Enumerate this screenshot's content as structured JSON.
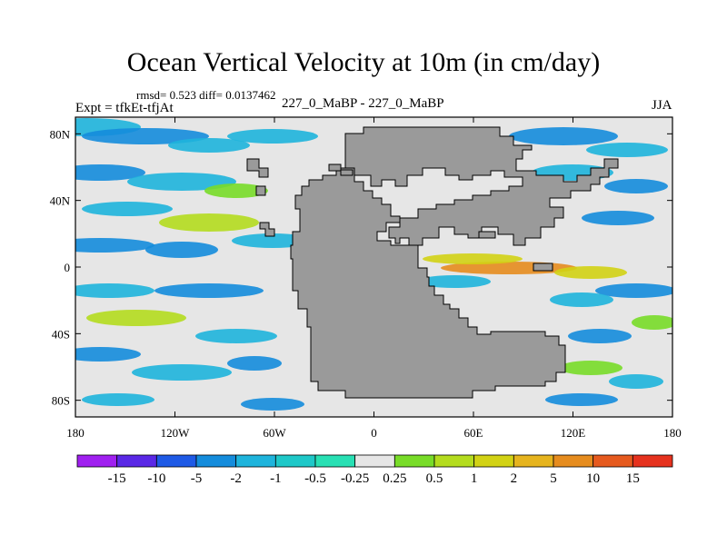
{
  "chart_data": {
    "type": "heatmap",
    "title": "Ocean Vertical Velocity at 10m (in cm/day)",
    "stats_label": "rmsd= 0.523  diff= 0.0137462",
    "left_label": "Expt = tfkEt-tfjAt",
    "center_label": "227_0_MaBP - 227_0_MaBP",
    "right_label": "JJA",
    "x_ticks": [
      {
        "value": -180,
        "label": "180"
      },
      {
        "value": -120,
        "label": "120W"
      },
      {
        "value": -60,
        "label": "60W"
      },
      {
        "value": 0,
        "label": "0"
      },
      {
        "value": 60,
        "label": "60E"
      },
      {
        "value": 120,
        "label": "120E"
      },
      {
        "value": 180,
        "label": "180"
      }
    ],
    "y_ticks": [
      {
        "value": 80,
        "label": "80N"
      },
      {
        "value": 40,
        "label": "40N"
      },
      {
        "value": 0,
        "label": "0"
      },
      {
        "value": -40,
        "label": "40S"
      },
      {
        "value": -80,
        "label": "80S"
      }
    ],
    "xlim": [
      -180,
      180
    ],
    "ylim": [
      -90,
      90
    ],
    "colorbar": {
      "levels": [
        "-15",
        "-10",
        "-5",
        "-2",
        "-1",
        "-0.5",
        "-0.25",
        "0.25",
        "0.5",
        "1",
        "2",
        "5",
        "10",
        "15"
      ],
      "colors": [
        "#a020f0",
        "#5a28e6",
        "#1e5ae6",
        "#148cdc",
        "#1eb4dc",
        "#1ec8c8",
        "#28e0b4",
        "#e6e6e6",
        "#78dc28",
        "#b4dc1e",
        "#d2d214",
        "#e6b41e",
        "#e68c1e",
        "#e65a1e",
        "#e6321e"
      ]
    },
    "land_color": "#9a9a9a",
    "ocean_neutral_color": "#e6e6e6"
  }
}
